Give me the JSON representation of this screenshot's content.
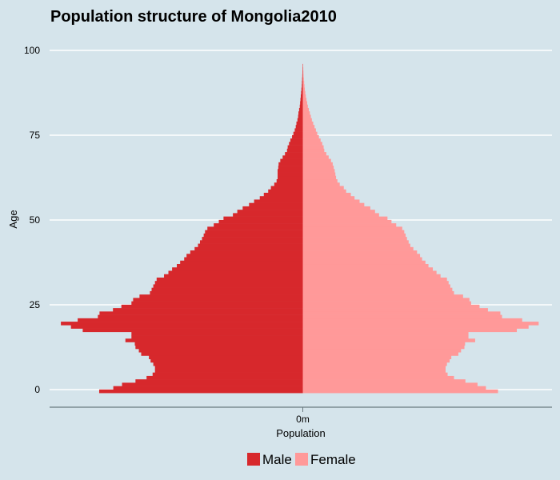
{
  "chart_data": {
    "type": "bar",
    "orientation": "horizontal-population-pyramid",
    "title": "Population structure of Mongolia2010",
    "xlabel": "Population",
    "ylabel": "Age",
    "x_ticks": [
      "0m"
    ],
    "y_ticks": [
      0,
      25,
      50,
      75,
      100
    ],
    "ylim": [
      -5,
      100
    ],
    "grid": "horizontal",
    "legend_position": "bottom",
    "colors": {
      "male": "#d7282c",
      "female": "#ff9999",
      "background": "#d5e4eb",
      "grid": "#ffffff"
    },
    "series": [
      {
        "name": "Male",
        "values": [
          60.6,
          56.4,
          53.8,
          49.8,
          46.5,
          44.7,
          44.0,
          44.0,
          44.5,
          45.3,
          45.8,
          48.1,
          48.8,
          49.8,
          50.0,
          52.8,
          51.0,
          51.0,
          65.5,
          69.0,
          72.0,
          67.0,
          61.0,
          60.5,
          56.5,
          54.0,
          51.0,
          50.5,
          48.6,
          45.5,
          45.0,
          44.5,
          44.0,
          43.5,
          41.3,
          40.0,
          38.9,
          37.5,
          36.5,
          35.3,
          34.6,
          33.5,
          32.2,
          31.2,
          30.6,
          30.0,
          29.5,
          29.1,
          28.4,
          26.5,
          25.0,
          23.6,
          20.8,
          19.5,
          17.9,
          16.0,
          14.5,
          12.8,
          11.6,
          10.3,
          9.5,
          8.5,
          7.8,
          7.5,
          7.5,
          7.5,
          7.3,
          7.2,
          6.7,
          6.0,
          5.3,
          4.7,
          4.5,
          4.1,
          3.7,
          3.2,
          2.8,
          2.4,
          2.1,
          1.9,
          1.6,
          1.4,
          1.3,
          1.1,
          0.9,
          0.8,
          0.7,
          0.6,
          0.5,
          0.4,
          0.3,
          0.25,
          0.2,
          0.15,
          0.12,
          0.1,
          0.08
        ]
      },
      {
        "name": "Female",
        "values": [
          58.1,
          54.5,
          52.0,
          48.4,
          45.0,
          43.1,
          42.5,
          42.5,
          42.9,
          43.7,
          44.2,
          46.3,
          47.1,
          48.1,
          48.3,
          51.3,
          49.3,
          49.3,
          63.7,
          67.2,
          70.2,
          65.3,
          59.3,
          58.8,
          55.1,
          52.6,
          50.1,
          49.6,
          47.7,
          45.0,
          44.5,
          43.9,
          43.4,
          42.9,
          41.0,
          39.8,
          38.7,
          37.4,
          36.5,
          35.5,
          34.9,
          34.0,
          32.9,
          32.0,
          31.5,
          31.0,
          30.6,
          30.2,
          29.6,
          27.8,
          26.4,
          25.2,
          22.7,
          21.5,
          20.1,
          18.3,
          16.9,
          15.4,
          14.3,
          12.9,
          12.2,
          11.0,
          10.3,
          9.9,
          9.7,
          9.5,
          9.2,
          8.9,
          8.4,
          7.7,
          7.0,
          6.4,
          6.2,
          5.8,
          5.3,
          4.8,
          4.3,
          3.9,
          3.5,
          3.1,
          2.7,
          2.4,
          2.1,
          1.8,
          1.5,
          1.3,
          1.1,
          0.9,
          0.75,
          0.6,
          0.5,
          0.4,
          0.3,
          0.22,
          0.18,
          0.14,
          0.1
        ]
      }
    ]
  }
}
